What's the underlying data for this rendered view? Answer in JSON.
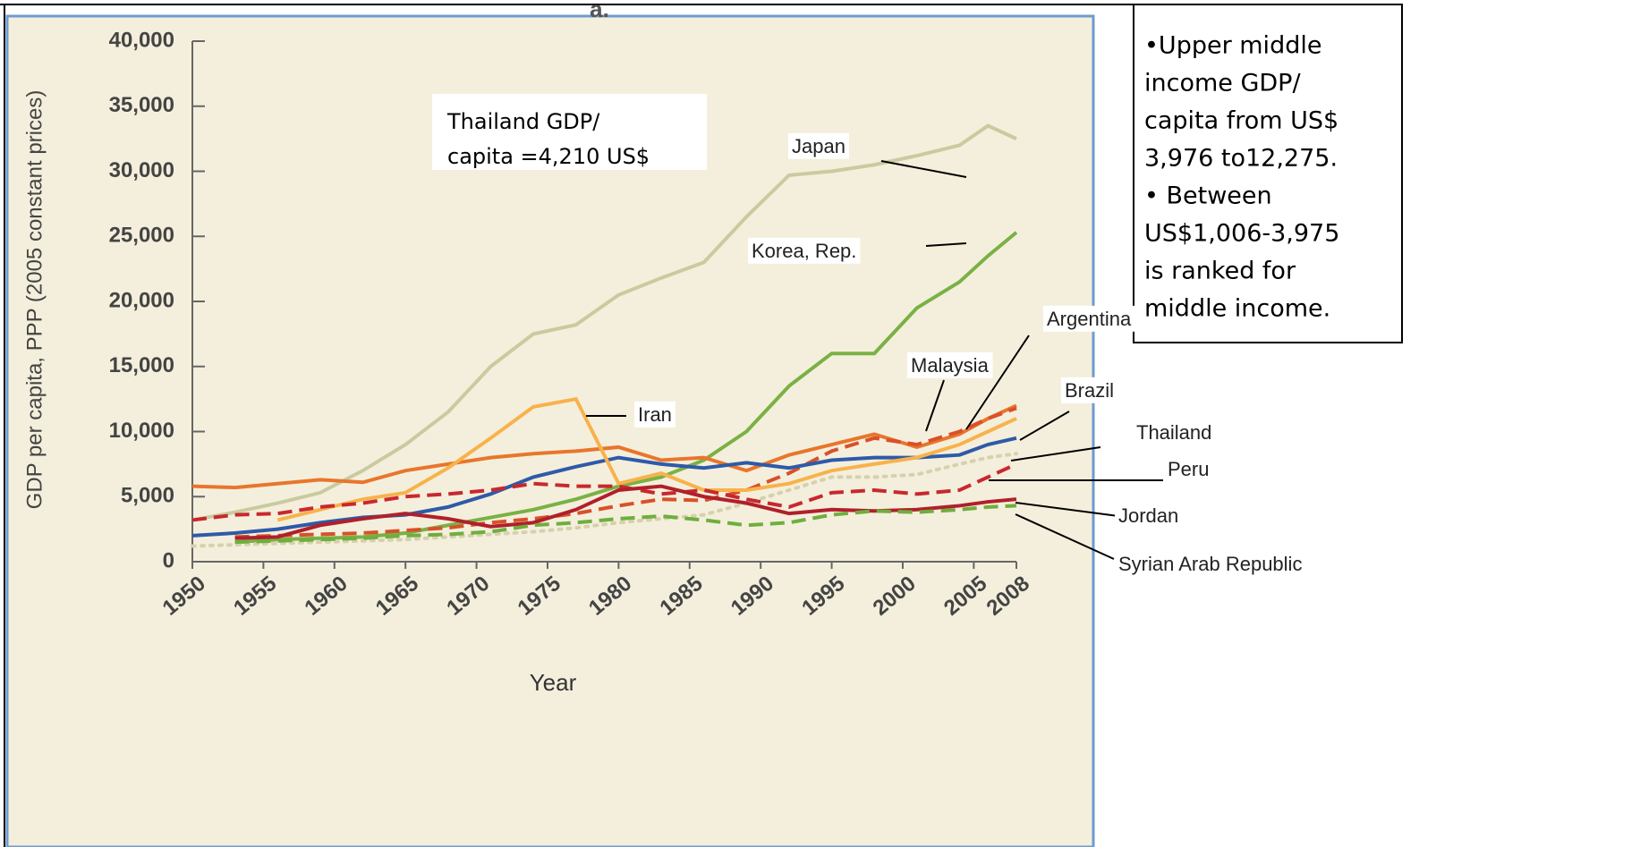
{
  "chart_data": {
    "type": "line",
    "title": "a.",
    "xlabel": "Year",
    "ylabel": "GDP per capita, PPP (2005 constant prices)",
    "x": [
      1950,
      1953,
      1956,
      1959,
      1962,
      1965,
      1968,
      1971,
      1974,
      1977,
      1980,
      1983,
      1986,
      1989,
      1992,
      1995,
      1998,
      2001,
      2004,
      2006,
      2008
    ],
    "xlim": [
      1950,
      2008
    ],
    "xticks": [
      1950,
      1955,
      1960,
      1965,
      1970,
      1975,
      1980,
      1985,
      1990,
      1995,
      2000,
      2005,
      2008
    ],
    "ylim": [
      0,
      40000
    ],
    "yticks": [
      0,
      {
        "value": 5000,
        "label": "5,000"
      },
      {
        "value": 10000,
        "label": "10,000"
      },
      {
        "value": 15000,
        "label": "15,000"
      },
      {
        "value": 20000,
        "label": "20,000"
      },
      {
        "value": 25000,
        "label": "25,000"
      },
      {
        "value": 30000,
        "label": "30,000"
      },
      {
        "value": 35000,
        "label": "35,000"
      },
      {
        "value": 40000,
        "label": "40,000"
      }
    ],
    "series": [
      {
        "name": "Japan",
        "color": "#c9cb9f",
        "dash": "solid",
        "values": [
          3200,
          3800,
          4500,
          5300,
          7000,
          9000,
          11500,
          15000,
          17500,
          18200,
          20500,
          21800,
          23000,
          26500,
          29700,
          30000,
          30500,
          31200,
          32000,
          33500,
          32500
        ]
      },
      {
        "name": "Korea, Rep.",
        "color": "#7ab144",
        "dash": "solid",
        "values": [
          null,
          1500,
          1700,
          1800,
          1900,
          2200,
          2800,
          3400,
          4000,
          4800,
          5800,
          6500,
          7800,
          10000,
          13500,
          16000,
          16000,
          19500,
          21500,
          23500,
          25300
        ]
      },
      {
        "name": "Argentina",
        "color": "#e8762c",
        "dash": "solid",
        "values": [
          5800,
          5700,
          6000,
          6300,
          6100,
          7000,
          7500,
          8000,
          8300,
          8500,
          8800,
          7800,
          8000,
          7000,
          8200,
          9000,
          9800,
          8800,
          9800,
          11000,
          12000
        ]
      },
      {
        "name": "Malaysia",
        "color": "#d9502a",
        "dash": "dashed",
        "values": [
          null,
          1900,
          2000,
          2100,
          2200,
          2400,
          2600,
          3000,
          3300,
          3700,
          4300,
          4800,
          4700,
          5500,
          6800,
          8500,
          9500,
          9000,
          10000,
          11000,
          11800
        ]
      },
      {
        "name": "Brazil",
        "color": "#2e5aa8",
        "dash": "solid",
        "values": [
          2000,
          2200,
          2500,
          3000,
          3400,
          3600,
          4200,
          5200,
          6500,
          7300,
          8000,
          7500,
          7200,
          7600,
          7200,
          7800,
          8000,
          8000,
          8200,
          9000,
          9500
        ]
      },
      {
        "name": "Iran",
        "color": "#f8b24c",
        "dash": "solid",
        "values": [
          null,
          null,
          3200,
          4000,
          4800,
          5300,
          7200,
          9500,
          11900,
          12500,
          6000,
          6800,
          5500,
          5500,
          6000,
          7000,
          7500,
          8000,
          9000,
          10000,
          11000
        ]
      },
      {
        "name": "Thailand",
        "color": "#d6d1ad",
        "dash": "dotted",
        "values": [
          1200,
          1300,
          1400,
          1500,
          1600,
          1700,
          1900,
          2100,
          2300,
          2600,
          3000,
          3300,
          3600,
          4500,
          5500,
          6500,
          6500,
          6700,
          7500,
          8000,
          8300
        ]
      },
      {
        "name": "Peru",
        "color": "#c8282e",
        "dash": "dashed",
        "values": [
          3200,
          3600,
          3700,
          4200,
          4500,
          5000,
          5200,
          5500,
          6000,
          5800,
          5800,
          5200,
          5500,
          4800,
          4200,
          5300,
          5500,
          5200,
          5500,
          6500,
          7500
        ]
      },
      {
        "name": "Jordan",
        "color": "#b0202a",
        "dash": "solid",
        "values": [
          null,
          1800,
          1900,
          2800,
          3300,
          3700,
          3300,
          2700,
          3000,
          4000,
          5500,
          5800,
          5000,
          4500,
          3700,
          4000,
          3900,
          4000,
          4300,
          4600,
          4800
        ]
      },
      {
        "name": "Syrian Arab Republic",
        "color": "#6fae3e",
        "dash": "dashed",
        "values": [
          null,
          1500,
          1600,
          1700,
          1800,
          2000,
          2100,
          2300,
          2800,
          3000,
          3300,
          3500,
          3200,
          2800,
          3000,
          3600,
          3900,
          3800,
          4000,
          4200,
          4300
        ]
      }
    ],
    "annotation": [
      "Thailand GDP/",
      "capita =4,210 US$"
    ]
  },
  "note": [
    "•Upper middle",
    "income GDP/",
    "capita from US$",
    "3,976 to12,275.",
    "• Between",
    "US$1,006-3,975",
    "is ranked for",
    "middle income."
  ]
}
